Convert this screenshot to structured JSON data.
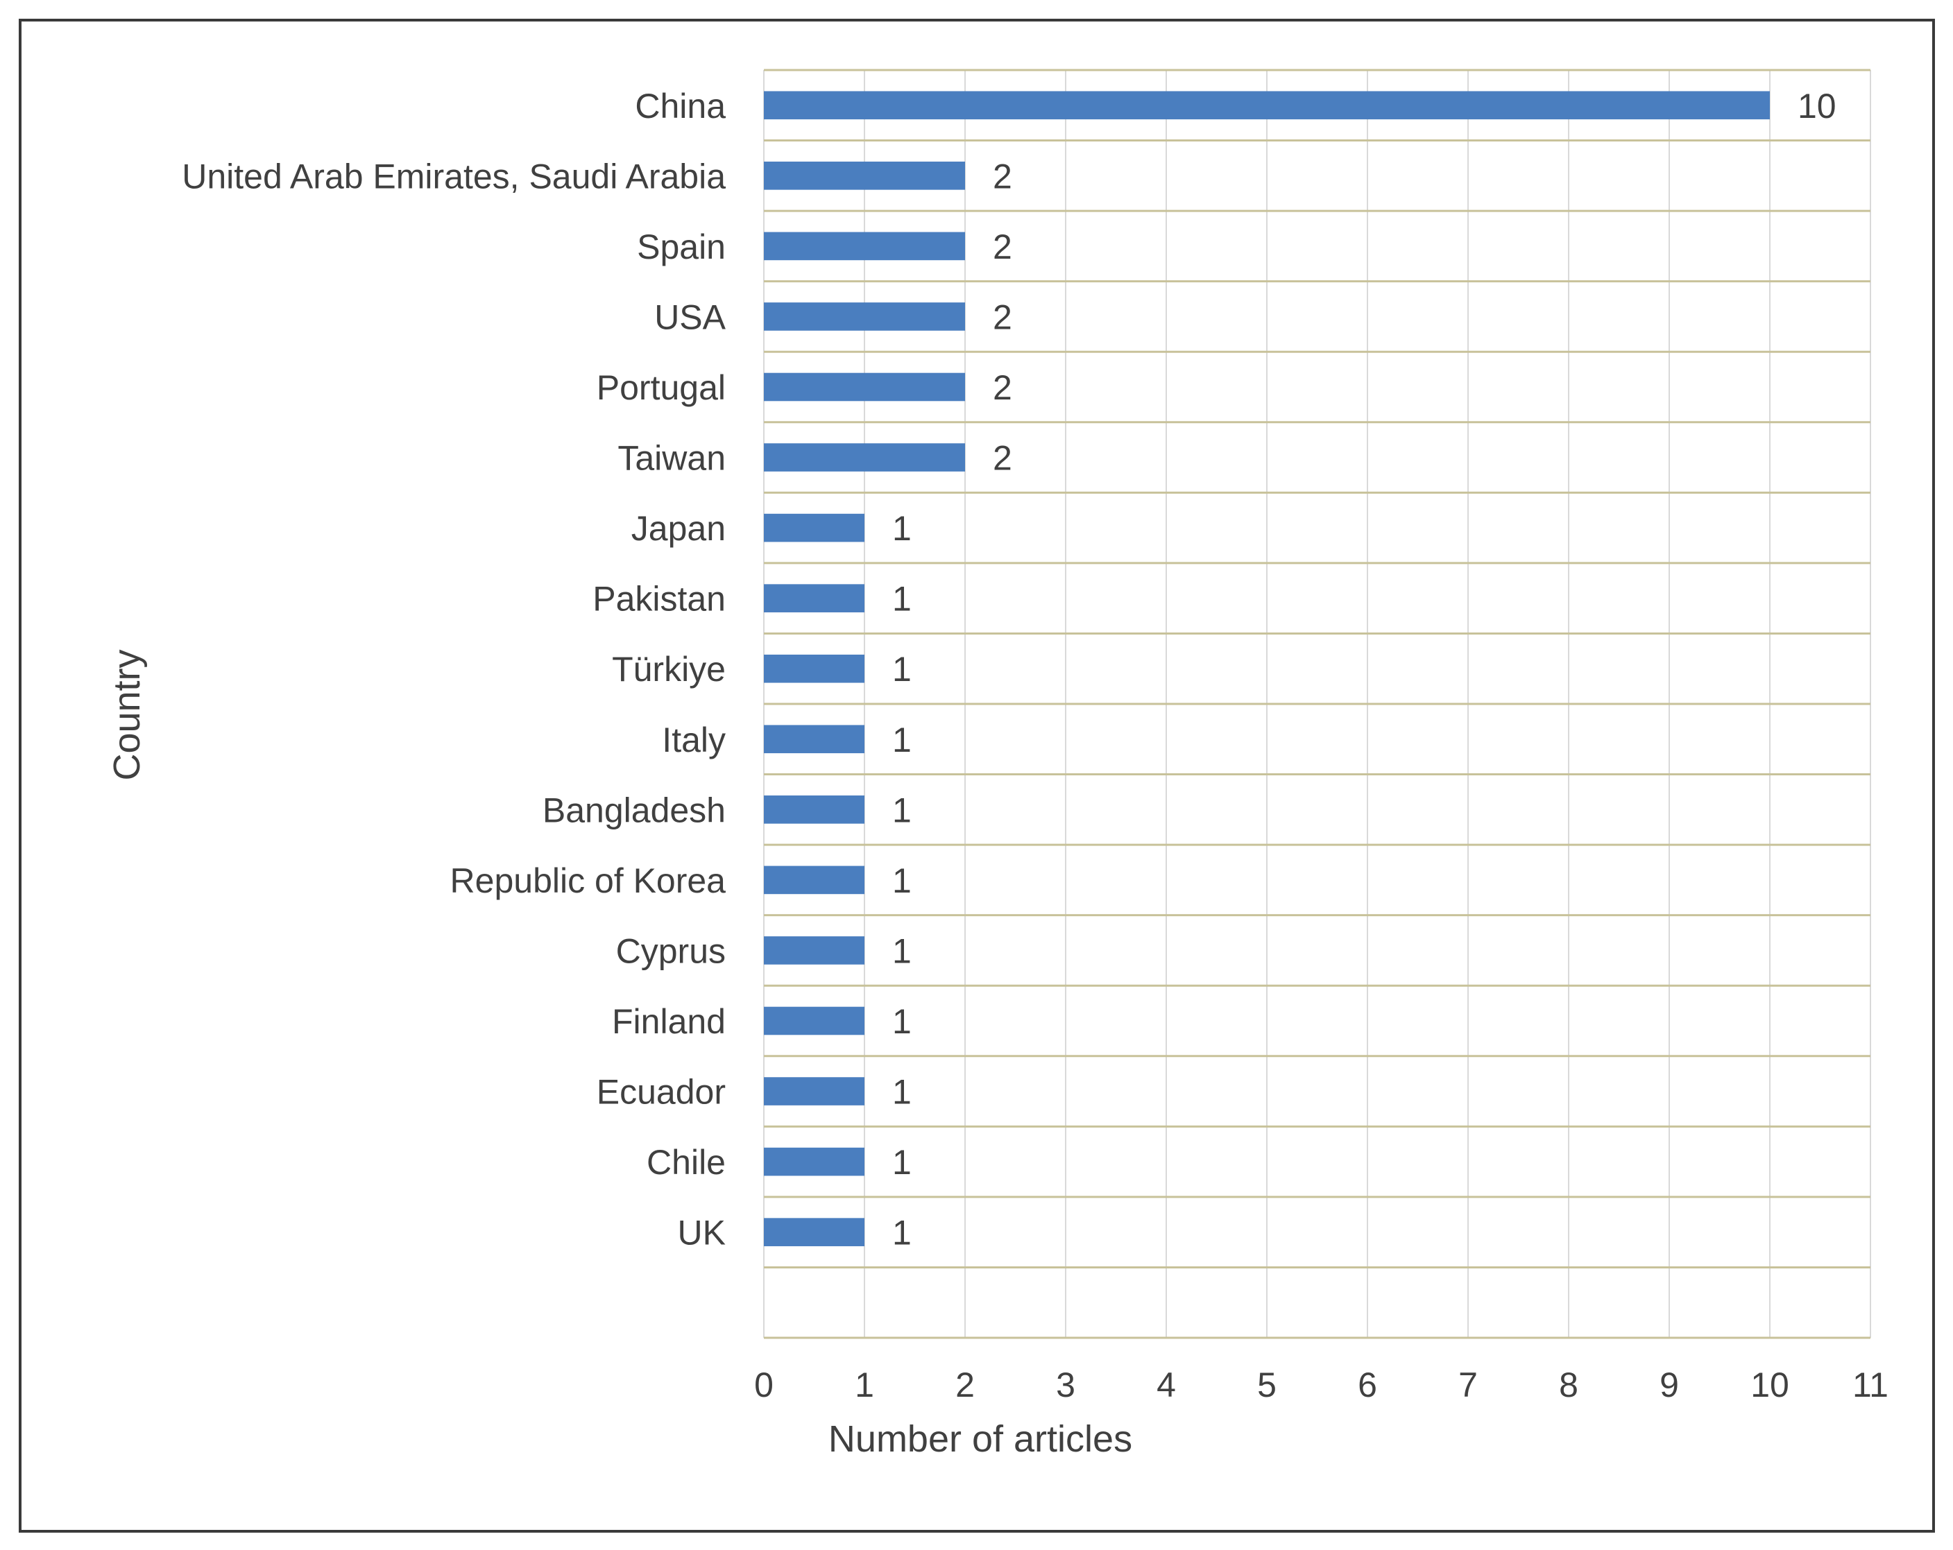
{
  "chart_data": {
    "type": "bar",
    "orientation": "horizontal",
    "categories": [
      "China",
      "United Arab Emirates, Saudi Arabia",
      "Spain",
      "USA",
      "Portugal",
      "Taiwan",
      "Japan",
      "Pakistan",
      "Türkiye",
      "Italy",
      "Bangladesh",
      "Republic of Korea",
      "Cyprus",
      "Finland",
      "Ecuador",
      "Chile",
      "UK"
    ],
    "values": [
      10,
      2,
      2,
      2,
      2,
      2,
      1,
      1,
      1,
      1,
      1,
      1,
      1,
      1,
      1,
      1,
      1
    ],
    "data_labels": [
      "10",
      "2",
      "2",
      "2",
      "2",
      "2",
      "1",
      "1",
      "1",
      "1",
      "1",
      "1",
      "1",
      "1",
      "1",
      "1",
      "1"
    ],
    "xlabel": "Number of articles",
    "ylabel": "Country",
    "xlim": [
      0,
      11
    ],
    "xticks": [
      "0",
      "1",
      "2",
      "3",
      "4",
      "5",
      "6",
      "7",
      "8",
      "9",
      "10",
      "11"
    ],
    "grid": true,
    "legend": "none",
    "colors": {
      "bar": "#4a7ebf",
      "grid": "#d9d9d9",
      "row_lines": "#c8c29a",
      "text": "#404040",
      "frame": "#3a3a3a"
    }
  }
}
